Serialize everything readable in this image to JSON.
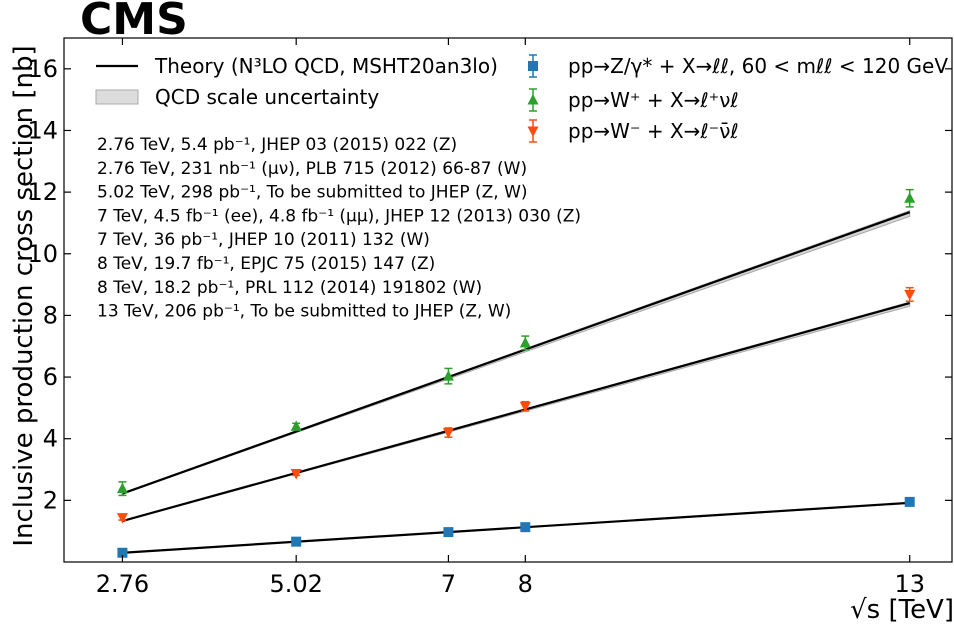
{
  "chart_data": {
    "type": "scatter",
    "experiment_label": "CMS",
    "xlabel": "√s [TeV]",
    "ylabel": "Inclusive production cross section [nb]",
    "x_ticks": [
      2.76,
      5.02,
      7,
      8,
      13
    ],
    "x_tick_labels": [
      "2.76",
      "5.02",
      "7",
      "8",
      "13"
    ],
    "y_ticks": [
      2,
      4,
      6,
      8,
      10,
      12,
      14,
      16
    ],
    "xlim": [
      2.0,
      13.55
    ],
    "ylim": [
      0.0,
      17.0
    ],
    "grid": false,
    "legend_placement": "top",
    "theory_legend": {
      "line_label": "Theory (N³LO QCD, MSHT20an3lo)",
      "band_label": "QCD scale uncertainty"
    },
    "theory": [
      {
        "x": [
          2.76,
          13
        ],
        "y": [
          0.3,
          1.92
        ]
      },
      {
        "x": [
          2.76,
          13
        ],
        "y": [
          2.22,
          11.35
        ]
      },
      {
        "x": [
          2.76,
          13
        ],
        "y": [
          1.33,
          8.4
        ]
      }
    ],
    "series": [
      {
        "name": "pp→Z/γ* + X→ℓℓ, 60 < mℓℓ < 120 GeV",
        "marker": "square",
        "color": "#1f77b4",
        "x": [
          2.76,
          5.02,
          7,
          8,
          13
        ],
        "y": [
          0.3,
          0.66,
          0.97,
          1.13,
          1.95
        ],
        "err": [
          0.02,
          0.03,
          0.04,
          0.04,
          0.07
        ]
      },
      {
        "name": "pp→W⁺ + X→ℓ⁺νℓ",
        "marker": "triangle-up",
        "color": "#2ca02c",
        "x": [
          2.76,
          5.02,
          7,
          8,
          13
        ],
        "y": [
          2.38,
          4.4,
          6.03,
          7.11,
          11.8
        ],
        "err": [
          0.22,
          0.1,
          0.25,
          0.22,
          0.28
        ]
      },
      {
        "name": "pp→W⁻ + X→ℓ⁻ν̄ℓ",
        "marker": "triangle-down",
        "color": "#ff4d0d",
        "x": [
          2.76,
          5.02,
          7,
          8,
          13
        ],
        "y": [
          1.44,
          2.87,
          4.2,
          5.05,
          8.68
        ],
        "err": [
          0.08,
          0.06,
          0.15,
          0.15,
          0.22
        ]
      }
    ],
    "annotations": [
      "2.76 TeV, 5.4 pb⁻¹, JHEP 03 (2015) 022 (Z)",
      "2.76 TeV, 231 nb⁻¹ (μν), PLB 715 (2012) 66-87 (W)",
      "5.02 TeV, 298 pb⁻¹, To be submitted to JHEP (Z, W)",
      "7 TeV, 4.5 fb⁻¹ (ee), 4.8 fb⁻¹ (μμ), JHEP 12 (2013) 030 (Z)",
      "7 TeV, 36 pb⁻¹, JHEP 10 (2011) 132 (W)",
      "8 TeV, 19.7 fb⁻¹, EPJC 75 (2015) 147 (Z)",
      "8 TeV, 18.2 pb⁻¹, PRL 112 (2014) 191802 (W)",
      "13 TeV, 206 pb⁻¹, To be submitted to JHEP (Z, W)"
    ]
  }
}
